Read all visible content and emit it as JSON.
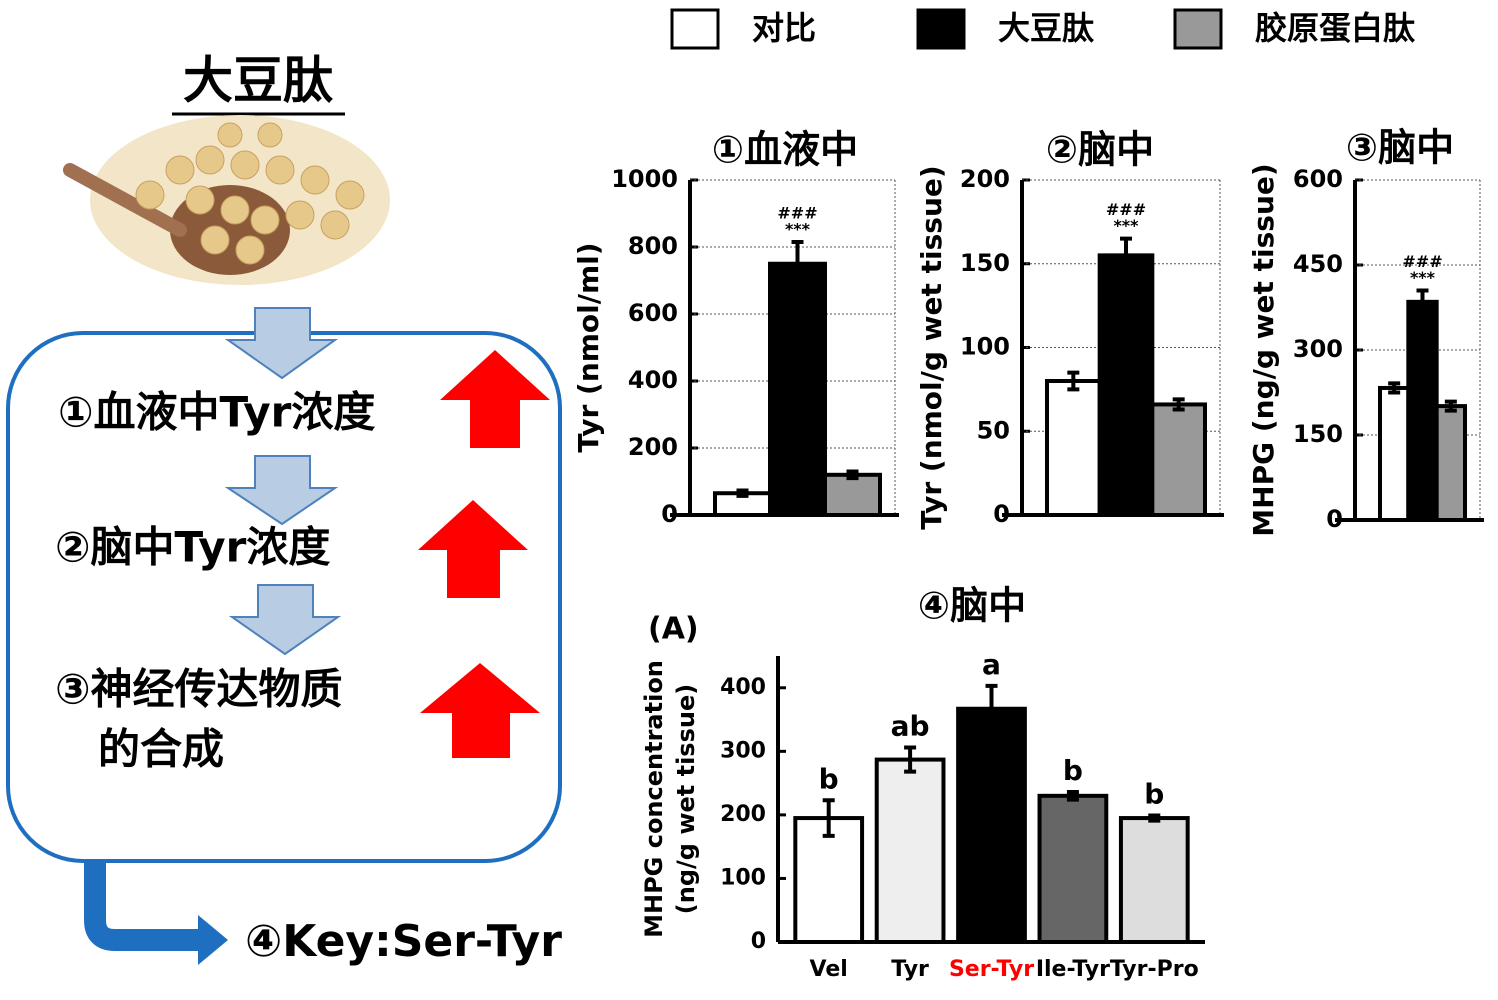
{
  "diagram": {
    "title": "大豆肽",
    "steps": [
      "①血液中Tyr浓度",
      "②脑中Tyr浓度",
      "③神经传达物质",
      "的合成"
    ],
    "key": "④Key:Ser-Tyr"
  },
  "legend": {
    "items": [
      {
        "name": "对比",
        "color": "#ffffff"
      },
      {
        "name": "大豆肽",
        "color": "#000000"
      },
      {
        "name": "胶原蛋白肽",
        "color": "#999999"
      }
    ]
  },
  "chart_data": [
    {
      "type": "bar",
      "title": "①血液中",
      "ylabel": "Tyr (nmol/ml)",
      "values": [
        65,
        750,
        120
      ],
      "errors": [
        8,
        65,
        10
      ],
      "ylim": [
        0,
        1000
      ],
      "yticks": [
        0,
        200,
        400,
        600,
        800,
        1000
      ],
      "grid": true,
      "annotations": [
        "###",
        "***"
      ]
    },
    {
      "type": "bar",
      "title": "②脑中",
      "ylabel": "Tyr (nmol/g wet tissue)",
      "values": [
        80,
        155,
        66
      ],
      "errors": [
        5,
        10,
        3
      ],
      "ylim": [
        0,
        200
      ],
      "yticks": [
        0,
        50,
        100,
        150,
        200
      ],
      "grid": true,
      "annotations": [
        "###",
        "***"
      ]
    },
    {
      "type": "bar",
      "title": "③脑中",
      "ylabel": "MHPG (ng/g wet tissue)",
      "values": [
        233,
        385,
        201
      ],
      "errors": [
        8,
        20,
        8
      ],
      "ylim": [
        0,
        600
      ],
      "yticks": [
        0,
        150,
        300,
        450,
        600
      ],
      "grid": true,
      "annotations": [
        "###",
        "***"
      ]
    },
    {
      "type": "bar",
      "title": "④脑中",
      "panel": "(A)",
      "ylabel": [
        "MHPG concentration",
        "(ng/g wet tissue)"
      ],
      "categories": [
        "Vel",
        "Tyr",
        "Ser-Tyr",
        "Ile-Tyr",
        "Tyr-Pro"
      ],
      "values": [
        195,
        287,
        367,
        230,
        195
      ],
      "errors": [
        28,
        19,
        36,
        6,
        4
      ],
      "colors": [
        "#ffffff",
        "#eeeeee",
        "#000000",
        "#666666",
        "#dddddd"
      ],
      "category_colors": [
        "#000000",
        "#000000",
        "#ff0000",
        "#000000",
        "#000000"
      ],
      "value_labels": [
        "b",
        "ab",
        "a",
        "b",
        "b"
      ],
      "ylim": [
        0,
        450
      ],
      "yticks": [
        0,
        100,
        200,
        300,
        400
      ],
      "grid": false
    }
  ]
}
